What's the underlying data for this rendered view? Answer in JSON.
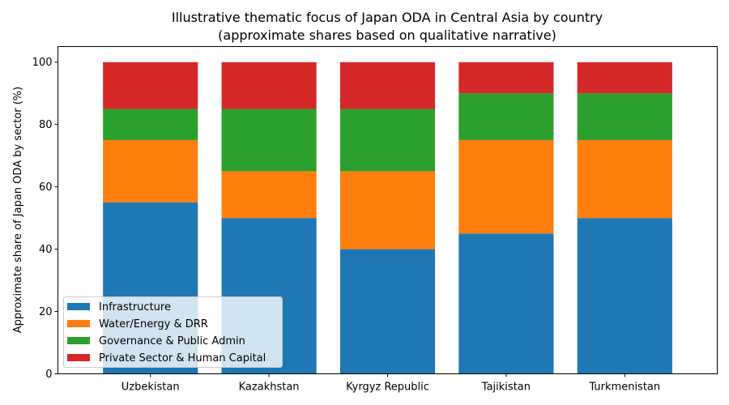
{
  "chart_data": {
    "type": "bar",
    "stacked": true,
    "title": "Illustrative thematic focus of Japan ODA in Central Asia by country",
    "subtitle": "(approximate shares based on qualitative narrative)",
    "xlabel": "",
    "ylabel": "Approximate share of Japan ODA by sector (%)",
    "ylim": [
      0,
      105
    ],
    "yticks": [
      "0",
      "20",
      "40",
      "60",
      "80",
      "100"
    ],
    "categories": [
      "Uzbekistan",
      "Kazakhstan",
      "Kyrgyz Republic",
      "Tajikistan",
      "Turkmenistan"
    ],
    "series": [
      {
        "name": "Infrastructure",
        "color": "#1f77b4",
        "values": [
          55,
          50,
          40,
          45,
          50
        ]
      },
      {
        "name": "Water/Energy & DRR",
        "color": "#ff7f0e",
        "values": [
          20,
          15,
          25,
          30,
          25
        ]
      },
      {
        "name": "Governance & Public Admin",
        "color": "#2ca02c",
        "values": [
          10,
          20,
          20,
          15,
          15
        ]
      },
      {
        "name": "Private Sector & Human Capital",
        "color": "#d62728",
        "values": [
          15,
          15,
          15,
          10,
          10
        ]
      }
    ],
    "legend_position": "lower-left",
    "grid": false
  }
}
